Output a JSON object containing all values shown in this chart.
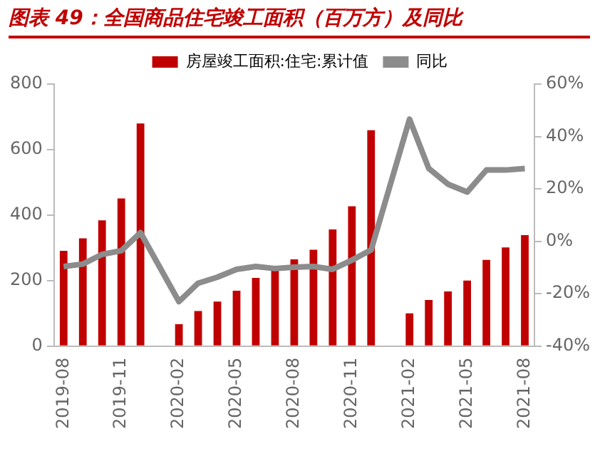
{
  "chart_data": {
    "type": "bar",
    "title": "图表 49：全国商品住宅竣工面积（百万方）及同比",
    "categories": [
      "2019-08",
      null,
      null,
      "2019-11",
      null,
      null,
      "2020-02",
      null,
      null,
      "2020-05",
      null,
      null,
      "2020-08",
      null,
      null,
      "2020-11",
      null,
      null,
      "2021-02",
      null,
      null,
      "2021-05",
      null,
      null,
      "2021-08"
    ],
    "series": [
      {
        "name": "房屋竣工面积:住宅:累计值",
        "color": "#c00000",
        "values": [
          291,
          329,
          384,
          451,
          680,
          null,
          67,
          107,
          136,
          169,
          208,
          234,
          265,
          294,
          356,
          427,
          659,
          null,
          100,
          141,
          167,
          200,
          263,
          301,
          339
        ]
      },
      {
        "name": "同比",
        "type": "line",
        "axis": "y2",
        "color": "#8c8c8c",
        "values": [
          -9.6,
          -8.7,
          -5,
          -3.6,
          3.3,
          null,
          -23,
          -16,
          -13.7,
          -10.7,
          -9.6,
          -10.4,
          -9.9,
          -9.6,
          -10.7,
          -7.2,
          -3.3,
          null,
          46.6,
          27.8,
          21.8,
          18.8,
          27.2,
          27.2,
          27.8
        ]
      }
    ],
    "ylim": [
      0,
      800
    ],
    "yticks": [
      0,
      200,
      400,
      600,
      800
    ],
    "y2lim": [
      -40,
      60
    ],
    "y2ticks": [
      {
        "value": -40,
        "label": "-40%"
      },
      {
        "value": -20,
        "label": "-20%"
      },
      {
        "value": 0,
        "label": "0%"
      },
      {
        "value": 20,
        "label": "20%"
      },
      {
        "value": 40,
        "label": "40%"
      },
      {
        "value": 60,
        "label": "60%"
      }
    ],
    "grid": false,
    "legend": "top",
    "marker": "none",
    "line_style": "solid"
  }
}
